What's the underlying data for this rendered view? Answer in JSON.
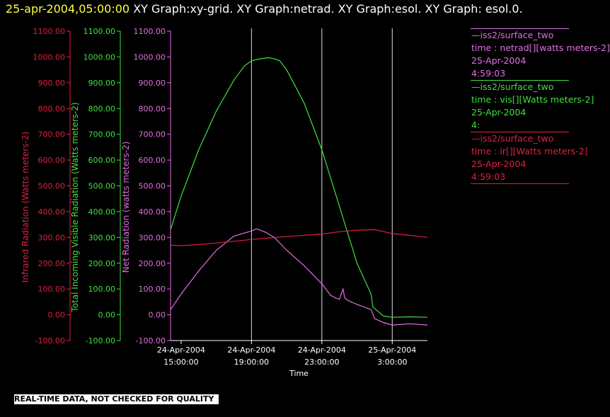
{
  "header": {
    "timestamp": "25-apr-2004,05:00:00",
    "title": "XY Graph:xy-grid.  XY Graph:netrad.  XY Graph:esol.  XY Graph:  esol.0."
  },
  "legend": [
    {
      "lines": [
        "—iss2/surface_two",
        "time : netrad[][watts meters-2]",
        "25-Apr-2004",
        "4:59:03"
      ],
      "color": "#e070e0"
    },
    {
      "lines": [
        "—iss2/surface_two",
        "time : vis[][Watts meters-2]",
        "25-Apr-2004",
        "4:"
      ],
      "color": "#40e040"
    },
    {
      "lines": [
        "—iss2/surface_two",
        "time : ir[][Watts meters-2]",
        "25-Apr-2004",
        "4:59:03"
      ],
      "color": "#e02040"
    }
  ],
  "notice": "REAL-TIME DATA, NOT CHECKED FOR QUALITY",
  "chart_data": {
    "type": "line",
    "xlabel": "Time",
    "x_ticks": [
      {
        "t": 15,
        "date": "24-Apr-2004",
        "time": "15:00:00"
      },
      {
        "t": 19,
        "date": "24-Apr-2004",
        "time": "19:00:00"
      },
      {
        "t": 23,
        "date": "24-Apr-2004",
        "time": "23:00:00"
      },
      {
        "t": 27,
        "date": "25-Apr-2004",
        "time": "3:00:00"
      }
    ],
    "xlim": [
      14.4,
      29.0
    ],
    "grid": "vertical lines at 19:00, 23:00, 3:00",
    "axes": [
      {
        "id": "ir",
        "label": "Infrared Radiation (Watts meters-2)",
        "color": "#e02040",
        "ylim": [
          -100,
          1100
        ],
        "ticks": [
          "-100.00",
          "0.00",
          "100.00",
          "200.00",
          "300.00",
          "400.00",
          "500.00",
          "600.00",
          "700.00",
          "800.00",
          "900.00",
          "1000.00",
          "1100.00"
        ]
      },
      {
        "id": "vis",
        "label": "Total Incoming Visible Radiation (Watts meters-2)",
        "color": "#40e040",
        "ylim": [
          -100,
          1100
        ],
        "ticks": [
          "-100.00",
          "0.00",
          "100.00",
          "200.00",
          "300.00",
          "400.00",
          "500.00",
          "600.00",
          "700.00",
          "800.00",
          "900.00",
          "1000.00",
          "1100.00"
        ]
      },
      {
        "id": "net",
        "label": "Net Radiation (watts meters-2)",
        "color": "#e070e0",
        "ylim": [
          -100,
          1100
        ],
        "ticks": [
          "-100.00",
          "0.00",
          "100.00",
          "200.00",
          "300.00",
          "400.00",
          "500.00",
          "600.00",
          "700.00",
          "800.00",
          "900.00",
          "1000.00",
          "1100.00"
        ]
      }
    ],
    "series": [
      {
        "id": "vis",
        "color": "#40e040",
        "x": [
          14.4,
          15.0,
          16.0,
          17.0,
          18.0,
          18.6,
          19.0,
          19.5,
          20.0,
          20.3,
          20.6,
          21.0,
          22.0,
          23.0,
          24.0,
          25.0,
          25.8,
          25.9,
          26.5,
          27.0,
          28.0,
          29.0
        ],
        "y": [
          330,
          460,
          640,
          790,
          910,
          965,
          985,
          993,
          997,
          993,
          985,
          950,
          820,
          640,
          420,
          200,
          80,
          30,
          -5,
          -10,
          -8,
          -10
        ]
      },
      {
        "id": "net",
        "color": "#e070e0",
        "x": [
          14.4,
          15.0,
          16.0,
          17.0,
          18.0,
          19.0,
          19.3,
          19.8,
          20.3,
          21.0,
          22.0,
          23.0,
          23.5,
          23.8,
          24.0,
          24.2,
          24.3,
          24.5,
          25.0,
          25.8,
          26.0,
          26.5,
          27.0,
          28.0,
          29.0
        ],
        "y": [
          20,
          80,
          170,
          250,
          305,
          325,
          333,
          320,
          300,
          250,
          190,
          120,
          75,
          65,
          60,
          100,
          65,
          55,
          40,
          20,
          -15,
          -30,
          -40,
          -35,
          -40
        ]
      },
      {
        "id": "ir",
        "color": "#e02040",
        "x": [
          14.4,
          15.0,
          16.0,
          17.0,
          18.0,
          19.0,
          20.0,
          21.0,
          22.0,
          23.0,
          24.0,
          25.0,
          26.0,
          27.0,
          28.0,
          29.0
        ],
        "y": [
          270,
          268,
          272,
          278,
          285,
          292,
          298,
          303,
          308,
          313,
          322,
          328,
          330,
          315,
          308,
          300
        ]
      }
    ]
  }
}
